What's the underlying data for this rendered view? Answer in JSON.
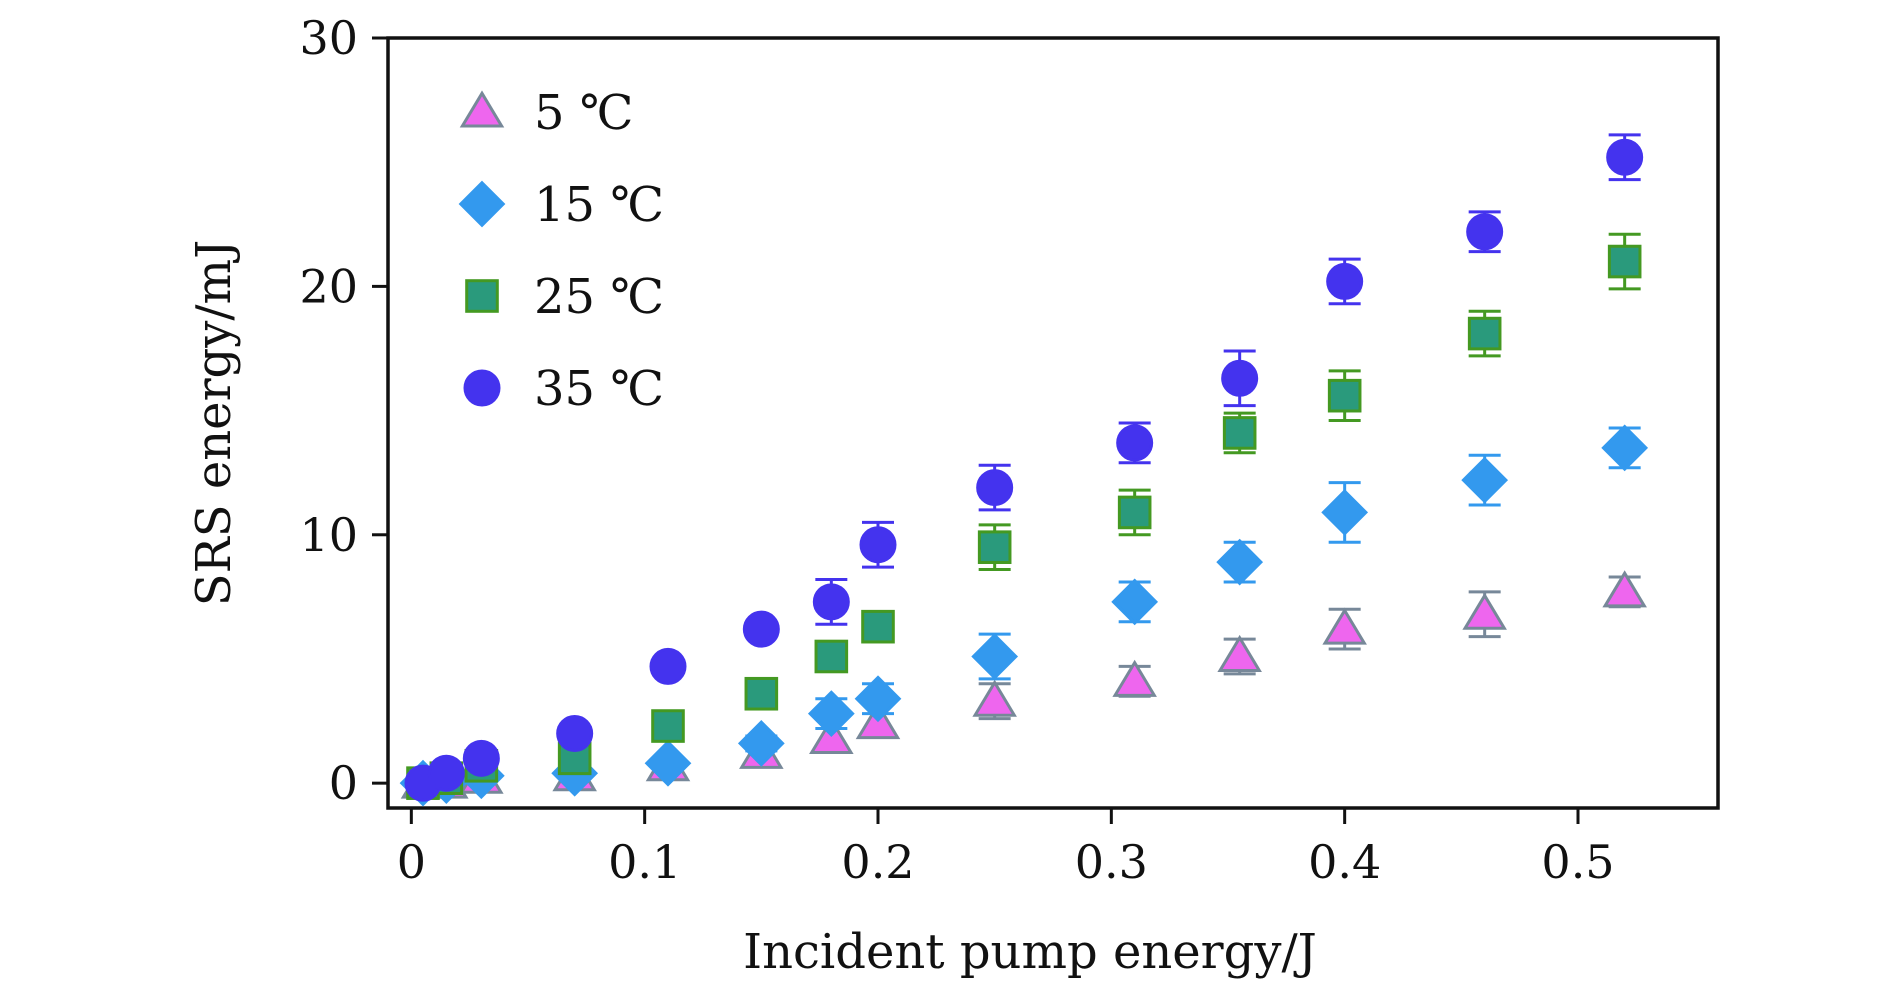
{
  "chart_data": {
    "type": "scatter",
    "title": "",
    "xlabel": "Incident pump energy/J",
    "ylabel": "SRS energy/mJ",
    "xlim": [
      -0.01,
      0.56
    ],
    "ylim": [
      -1,
      30
    ],
    "xticks": [
      "0",
      "0.1",
      "0.2",
      "0.3",
      "0.4",
      "0.5"
    ],
    "yticks": [
      "0",
      "10",
      "20",
      "30"
    ],
    "grid": false,
    "legend_position": "top-left",
    "series": [
      {
        "name": "5 ℃",
        "marker": "triangle",
        "color": "#ee66ee",
        "edge_color": "#778899",
        "x": [
          0.005,
          0.015,
          0.03,
          0.07,
          0.11,
          0.15,
          0.18,
          0.2,
          0.25,
          0.31,
          0.355,
          0.4,
          0.46,
          0.52
        ],
        "y": [
          0,
          0,
          0.2,
          0.3,
          0.7,
          1.2,
          1.8,
          2.4,
          3.3,
          4.1,
          5.1,
          6.2,
          6.8,
          7.7
        ],
        "err": [
          0,
          0,
          0,
          0,
          0,
          0,
          0,
          0,
          0.7,
          0.6,
          0.7,
          0.8,
          0.9,
          0.6
        ]
      },
      {
        "name": "15 ℃",
        "marker": "diamond",
        "color": "#3399ee",
        "edge_color": "#3399ee",
        "x": [
          0.005,
          0.015,
          0.03,
          0.07,
          0.11,
          0.15,
          0.18,
          0.2,
          0.25,
          0.31,
          0.355,
          0.4,
          0.46,
          0.52
        ],
        "y": [
          0,
          0.1,
          0.3,
          0.4,
          0.8,
          1.6,
          2.8,
          3.4,
          5.1,
          7.3,
          8.9,
          10.9,
          12.2,
          13.5
        ],
        "err": [
          0,
          0,
          0,
          0,
          0,
          0.3,
          0.6,
          0.6,
          0.9,
          0.8,
          0.8,
          1.2,
          1.0,
          0.8
        ]
      },
      {
        "name": "25 ℃",
        "marker": "square",
        "color": "#2a9a7c",
        "edge_color": "#449922",
        "x": [
          0.005,
          0.015,
          0.03,
          0.07,
          0.11,
          0.15,
          0.18,
          0.2,
          0.25,
          0.31,
          0.355,
          0.4,
          0.46,
          0.52
        ],
        "y": [
          0,
          0.2,
          0.7,
          1.0,
          2.3,
          3.6,
          5.1,
          6.3,
          9.5,
          10.9,
          14.1,
          15.6,
          18.1,
          21.0
        ],
        "err": [
          0,
          0,
          0,
          0,
          0,
          0,
          0,
          0.4,
          0.9,
          0.9,
          0.8,
          1.0,
          0.9,
          1.1
        ]
      },
      {
        "name": "35 ℃",
        "marker": "circle",
        "color": "#4433ee",
        "edge_color": "#4433ee",
        "x": [
          0.005,
          0.015,
          0.03,
          0.07,
          0.11,
          0.15,
          0.18,
          0.2,
          0.25,
          0.31,
          0.355,
          0.4,
          0.46,
          0.52
        ],
        "y": [
          0,
          0.4,
          1.0,
          2.0,
          4.7,
          6.2,
          7.3,
          9.6,
          11.9,
          13.7,
          16.3,
          20.2,
          22.2,
          25.2
        ],
        "err": [
          0,
          0,
          0,
          0,
          0,
          0,
          0.9,
          0.9,
          0.9,
          0.8,
          1.1,
          0.9,
          0.8,
          0.9
        ]
      }
    ]
  }
}
